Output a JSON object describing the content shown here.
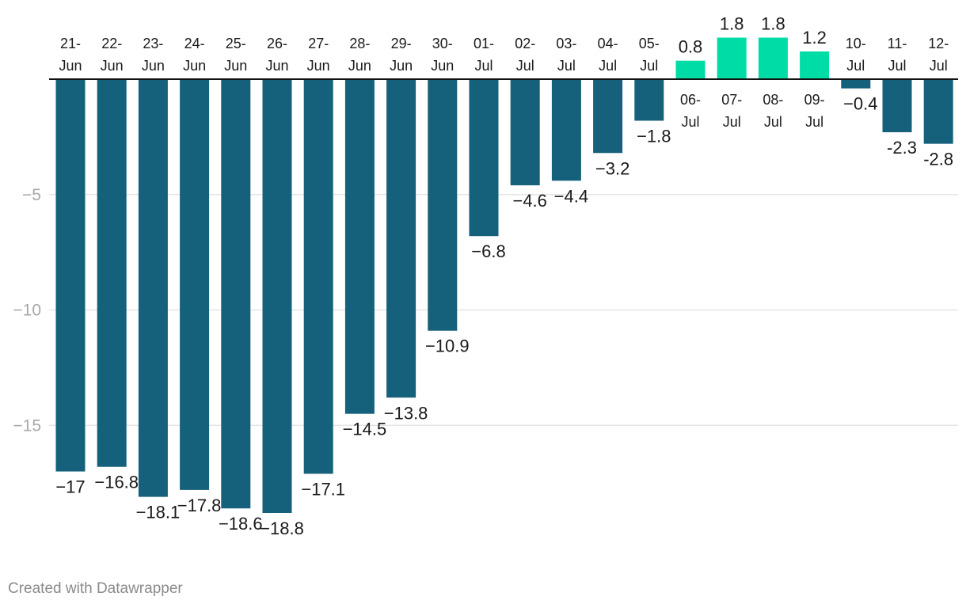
{
  "chart_data": {
    "type": "bar",
    "title": "",
    "xlabel": "",
    "ylabel": "",
    "ylim": [
      -18.8,
      1.8
    ],
    "yticks": [
      -5,
      -10,
      -15
    ],
    "ytick_labels": [
      "−5",
      "−10",
      "−15"
    ],
    "grid": true,
    "categories": [
      [
        "21-",
        "Jun"
      ],
      [
        "22-",
        "Jun"
      ],
      [
        "23-",
        "Jun"
      ],
      [
        "24-",
        "Jun"
      ],
      [
        "25-",
        "Jun"
      ],
      [
        "26-",
        "Jun"
      ],
      [
        "27-",
        "Jun"
      ],
      [
        "28-",
        "Jun"
      ],
      [
        "29-",
        "Jun"
      ],
      [
        "30-",
        "Jun"
      ],
      [
        "01-",
        "Jul"
      ],
      [
        "02-",
        "Jul"
      ],
      [
        "03-",
        "Jul"
      ],
      [
        "04-",
        "Jul"
      ],
      [
        "05-",
        "Jul"
      ],
      [
        "06-",
        "Jul"
      ],
      [
        "07-",
        "Jul"
      ],
      [
        "08-",
        "Jul"
      ],
      [
        "09-",
        "Jul"
      ],
      [
        "10-",
        "Jul"
      ],
      [
        "11-",
        "Jul"
      ],
      [
        "12-",
        "Jul"
      ]
    ],
    "values": [
      -17,
      -16.8,
      -18.1,
      -17.8,
      -18.6,
      -18.8,
      -17.1,
      -14.5,
      -13.8,
      -10.9,
      -6.8,
      -4.6,
      -4.4,
      -3.2,
      -1.8,
      0.8,
      1.8,
      1.8,
      1.2,
      -0.4,
      -2.3,
      -2.8
    ],
    "value_labels": [
      "−17",
      "−16.8",
      "−18.1",
      "−17.8",
      "−18.6",
      "−18.8",
      "−17.1",
      "−14.5",
      "−13.8",
      "−10.9",
      "−6.8",
      "−4.6",
      "−4.4",
      "−3.2",
      "−1.8",
      "0.8",
      "1.8",
      "1.8",
      "1.2",
      "−0.4",
      "-2.3",
      "-2.8"
    ],
    "colors": {
      "negative": "#15607a",
      "positive": "#00dca6",
      "grid": "#e5e5e5",
      "axis": "#111111",
      "tick_text": "#a8a8a8",
      "label_text": "#1a1a1a"
    }
  },
  "footer": {
    "credit": "Created with Datawrapper"
  }
}
